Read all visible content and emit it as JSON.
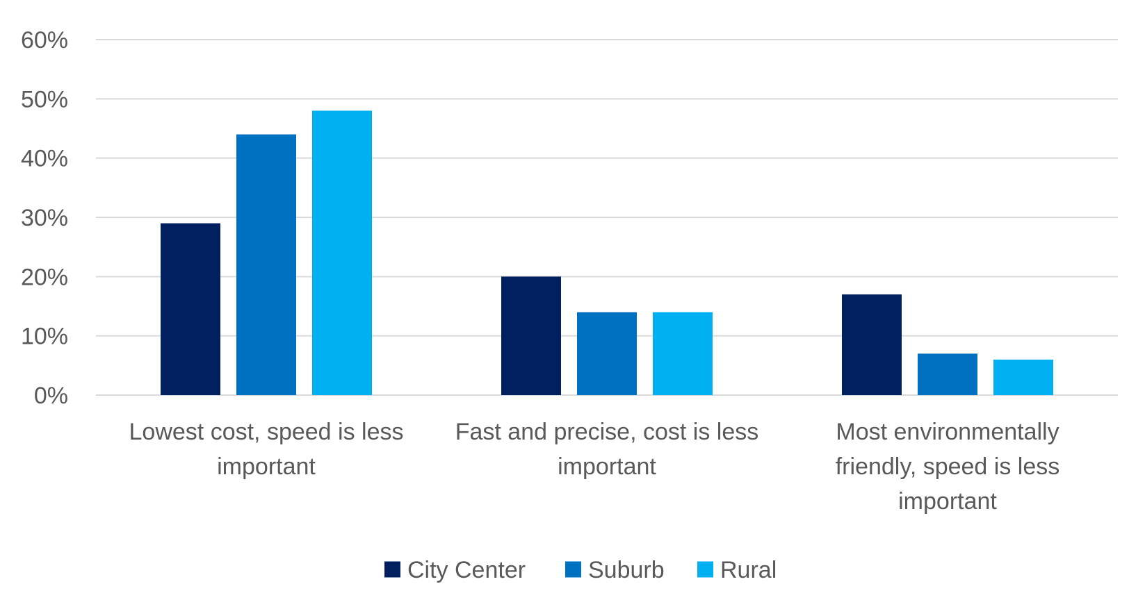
{
  "chart_data": {
    "type": "bar",
    "title": "",
    "xlabel": "",
    "ylabel": "",
    "categories": [
      "Lowest cost, speed is less important",
      "Fast and precise, cost is less important",
      "Most environmentally friendly, speed is less important"
    ],
    "category_lines": [
      [
        "Lowest cost, speed is less",
        "important"
      ],
      [
        "Fast and precise, cost is less",
        "important"
      ],
      [
        "Most environmentally",
        "friendly, speed is less",
        "important"
      ]
    ],
    "series": [
      {
        "name": "City Center",
        "color": "#002060",
        "values": [
          29,
          20,
          17
        ]
      },
      {
        "name": "Suburb",
        "color": "#0070C0",
        "values": [
          44,
          14,
          7
        ]
      },
      {
        "name": "Rural",
        "color": "#00B0F0",
        "values": [
          48,
          14,
          6
        ]
      }
    ],
    "ylim": [
      0,
      60
    ],
    "yticks": [
      0,
      10,
      20,
      30,
      40,
      50,
      60
    ],
    "ytick_labels": [
      "0%",
      "10%",
      "20%",
      "30%",
      "40%",
      "50%",
      "60%"
    ],
    "value_unit": "%",
    "grid": true,
    "gridline_color": "#D9D9D9",
    "legend_position": "bottom-center"
  }
}
